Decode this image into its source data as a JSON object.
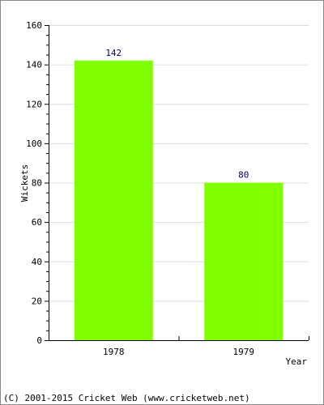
{
  "chart_data": {
    "type": "bar",
    "categories": [
      "1978",
      "1979"
    ],
    "series": [
      {
        "values": [
          142,
          80
        ]
      }
    ],
    "data_labels": [
      "142",
      "80"
    ],
    "xlabel": "Year",
    "ylabel": "Wickets",
    "ylim": [
      0,
      160
    ],
    "y_ticks": [
      "0",
      "20",
      "40",
      "60",
      "80",
      "100",
      "120",
      "140",
      "160"
    ],
    "y_minor_step": 5,
    "grid": true,
    "legend": "none"
  },
  "colors": {
    "bar": "#80ff00",
    "grid": "#dddddd",
    "axis": "#000000",
    "border": "#8a8a8a"
  },
  "footer": {
    "copyright": "(C) 2001-2015 Cricket Web (www.cricketweb.net)"
  }
}
